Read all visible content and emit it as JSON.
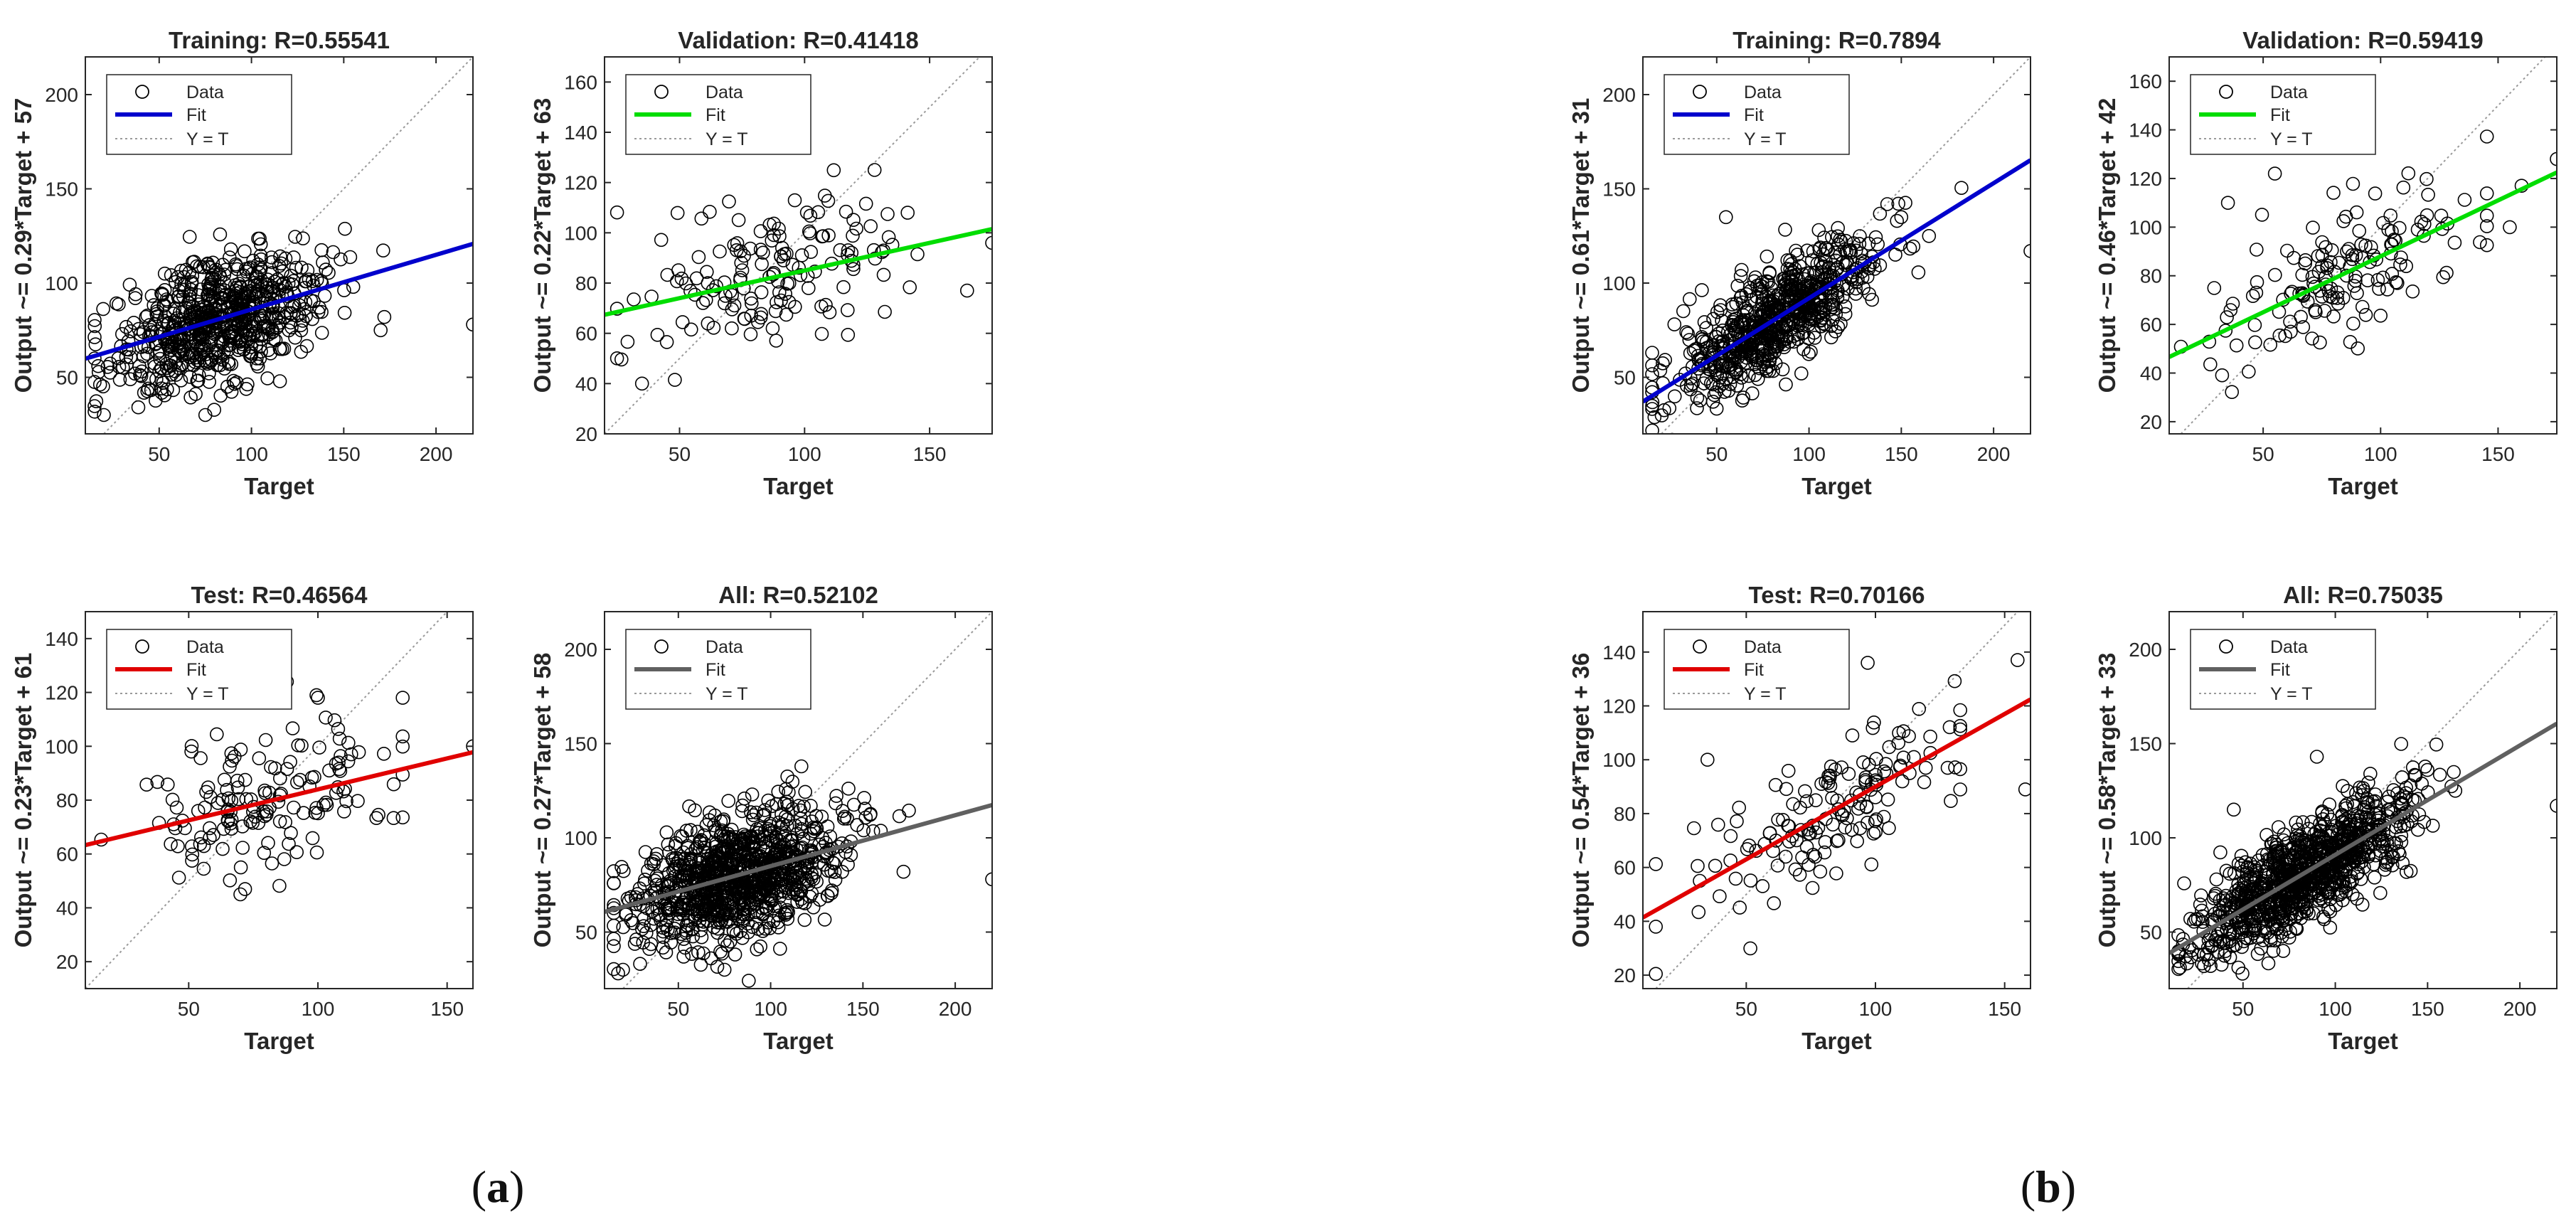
{
  "figure": {
    "panel_labels": [
      {
        "open": "(",
        "letter": "a",
        "close": ")"
      },
      {
        "open": "(",
        "letter": "b",
        "close": ")"
      }
    ],
    "colors": {
      "training": "#0000cc",
      "validation": "#00dd00",
      "test": "#e00000",
      "all": "#606060",
      "marker": "#000000",
      "identity": "#9a9a9a"
    },
    "legend": {
      "data_label": "Data",
      "fit_label": "Fit",
      "identity_label": "Y = T"
    }
  },
  "chart_data": [
    {
      "id": "a-training",
      "group": "a",
      "type": "scatter",
      "title": "Training: R=0.55541",
      "kind": "training",
      "xlabel": "Target",
      "ylabel": "Output ~= 0.29*Target + 57",
      "xlim": [
        10,
        220
      ],
      "ylim": [
        20,
        220
      ],
      "xticks": [
        50,
        100,
        150,
        200
      ],
      "yticks": [
        50,
        100,
        150,
        200
      ],
      "fit": {
        "slope": 0.29,
        "intercept": 57
      },
      "r": 0.55541,
      "n_points": 700,
      "cluster": {
        "x_mean": 82,
        "x_sd": 28,
        "y_sd": 16
      },
      "outliers": [
        [
          220,
          78
        ],
        [
          172,
          82
        ],
        [
          170,
          75
        ],
        [
          75,
          30
        ],
        [
          20,
          30
        ],
        [
          15,
          60
        ]
      ]
    },
    {
      "id": "a-validation",
      "group": "a",
      "type": "scatter",
      "title": "Validation: R=0.41418",
      "kind": "validation",
      "xlabel": "Target",
      "ylabel": "Output ~= 0.22*Target + 63",
      "xlim": [
        20,
        175
      ],
      "ylim": [
        20,
        170
      ],
      "xticks": [
        50,
        100,
        150
      ],
      "yticks": [
        20,
        40,
        60,
        80,
        100,
        120,
        140,
        160
      ],
      "fit": {
        "slope": 0.22,
        "intercept": 63
      },
      "r": 0.41418,
      "n_points": 150,
      "cluster": {
        "x_mean": 82,
        "x_sd": 26,
        "y_sd": 15
      },
      "outliers": [
        [
          175,
          96
        ],
        [
          165,
          77
        ],
        [
          128,
          125
        ],
        [
          35,
          40
        ]
      ]
    },
    {
      "id": "a-test",
      "group": "a",
      "type": "scatter",
      "title": "Test: R=0.46564",
      "kind": "test",
      "xlabel": "Target",
      "ylabel": "Output ~= 0.23*Target + 61",
      "xlim": [
        10,
        160
      ],
      "ylim": [
        10,
        150
      ],
      "xticks": [
        50,
        100,
        150
      ],
      "yticks": [
        20,
        40,
        60,
        80,
        100,
        120,
        140
      ],
      "fit": {
        "slope": 0.23,
        "intercept": 61
      },
      "r": 0.46564,
      "n_points": 150,
      "cluster": {
        "x_mean": 80,
        "x_sd": 26,
        "y_sd": 14
      },
      "outliers": [
        [
          160,
          100
        ],
        [
          88,
          124
        ],
        [
          100,
          118
        ],
        [
          70,
          45
        ]
      ]
    },
    {
      "id": "a-all",
      "group": "a",
      "type": "scatter",
      "title": "All: R=0.52102",
      "kind": "all",
      "xlabel": "Target",
      "ylabel": "Output ~= 0.27*Target + 58",
      "xlim": [
        10,
        220
      ],
      "ylim": [
        20,
        220
      ],
      "xticks": [
        50,
        100,
        150,
        200
      ],
      "yticks": [
        50,
        100,
        150,
        200
      ],
      "fit": {
        "slope": 0.27,
        "intercept": 58
      },
      "r": 0.52102,
      "n_points": 1000,
      "cluster": {
        "x_mean": 82,
        "x_sd": 28,
        "y_sd": 16
      },
      "outliers": [
        [
          220,
          78
        ],
        [
          172,
          82
        ],
        [
          75,
          30
        ],
        [
          20,
          30
        ],
        [
          90,
          123
        ]
      ]
    },
    {
      "id": "b-training",
      "group": "b",
      "type": "scatter",
      "title": "Training: R=0.7894",
      "kind": "training",
      "xlabel": "Target",
      "ylabel": "Output ~= 0.61*Target + 31",
      "xlim": [
        10,
        220
      ],
      "ylim": [
        20,
        220
      ],
      "xticks": [
        50,
        100,
        150,
        200
      ],
      "yticks": [
        50,
        100,
        150,
        200
      ],
      "fit": {
        "slope": 0.61,
        "intercept": 31
      },
      "r": 0.7894,
      "n_points": 700,
      "cluster": {
        "x_mean": 82,
        "x_sd": 28,
        "y_sd": 13
      },
      "outliers": [
        [
          220,
          117
        ],
        [
          150,
          135
        ],
        [
          165,
          125
        ],
        [
          55,
          135
        ]
      ]
    },
    {
      "id": "b-validation",
      "group": "b",
      "type": "scatter",
      "title": "Validation: R=0.59419",
      "kind": "validation",
      "xlabel": "Target",
      "ylabel": "Output ~= 0.46*Target + 42",
      "xlim": [
        10,
        175
      ],
      "ylim": [
        15,
        170
      ],
      "xticks": [
        50,
        100,
        150
      ],
      "yticks": [
        20,
        40,
        60,
        80,
        100,
        120,
        140,
        160
      ],
      "fit": {
        "slope": 0.46,
        "intercept": 42
      },
      "r": 0.59419,
      "n_points": 150,
      "cluster": {
        "x_mean": 80,
        "x_sd": 27,
        "y_sd": 14
      },
      "outliers": [
        [
          175,
          128
        ],
        [
          160,
          117
        ],
        [
          155,
          100
        ],
        [
          35,
          110
        ],
        [
          55,
          122
        ]
      ]
    },
    {
      "id": "b-test",
      "group": "b",
      "type": "scatter",
      "title": "Test: R=0.70166",
      "kind": "test",
      "xlabel": "Target",
      "ylabel": "Output ~= 0.54*Target + 36",
      "xlim": [
        10,
        160
      ],
      "ylim": [
        15,
        155
      ],
      "xticks": [
        50,
        100,
        150
      ],
      "yticks": [
        20,
        40,
        60,
        80,
        100,
        120,
        140
      ],
      "fit": {
        "slope": 0.54,
        "intercept": 36
      },
      "r": 0.70166,
      "n_points": 150,
      "cluster": {
        "x_mean": 80,
        "x_sd": 28,
        "y_sd": 13
      },
      "outliers": [
        [
          155,
          137
        ],
        [
          158,
          89
        ],
        [
          97,
          136
        ],
        [
          15,
          38
        ],
        [
          35,
          100
        ]
      ]
    },
    {
      "id": "b-all",
      "group": "b",
      "type": "scatter",
      "title": "All: R=0.75035",
      "kind": "all",
      "xlabel": "Target",
      "ylabel": "Output ~= 0.58*Target + 33",
      "xlim": [
        10,
        220
      ],
      "ylim": [
        20,
        220
      ],
      "xticks": [
        50,
        100,
        150,
        200
      ],
      "yticks": [
        50,
        100,
        150,
        200
      ],
      "fit": {
        "slope": 0.58,
        "intercept": 33
      },
      "r": 0.75035,
      "n_points": 1000,
      "cluster": {
        "x_mean": 82,
        "x_sd": 28,
        "y_sd": 13
      },
      "outliers": [
        [
          220,
          117
        ],
        [
          165,
          125
        ],
        [
          45,
          115
        ],
        [
          90,
          143
        ]
      ]
    }
  ]
}
